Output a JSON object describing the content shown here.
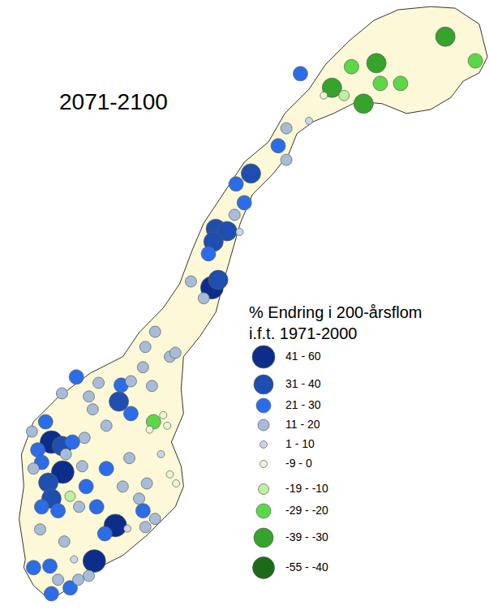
{
  "chart_data": {
    "type": "scatter",
    "title": "2071-2100",
    "legend_title": [
      "% Endring i 200-årsflom",
      "i.f.t. 1971-2000"
    ],
    "tick_labels": false,
    "grid": false,
    "xlim": [
      -140,
      1115
    ],
    "ylim": [
      6375,
      7950
    ],
    "classes": [
      {
        "label": "41 - 60",
        "min": 41,
        "max": 60,
        "color": "#0d2d8a"
      },
      {
        "label": "31 - 40",
        "min": 31,
        "max": 40,
        "color": "#1e4fb0"
      },
      {
        "label": "21 - 30",
        "min": 21,
        "max": 30,
        "color": "#2b6de8"
      },
      {
        "label": "11 - 20",
        "min": 11,
        "max": 20,
        "color": "#a7bcd8"
      },
      {
        "label": "1 - 10",
        "min": 1,
        "max": 10,
        "color": "#c8d6ea"
      },
      {
        "label": "-9 - 0",
        "min": -9,
        "max": 0,
        "color": "#e8f7d5"
      },
      {
        "label": "-19 - -10",
        "min": -19,
        "max": -10,
        "color": "#bdf0a0"
      },
      {
        "label": "-29 - -20",
        "min": -29,
        "max": -20,
        "color": "#5bd848"
      },
      {
        "label": "-39 - -30",
        "min": -39,
        "max": -30,
        "color": "#36a32b"
      },
      {
        "label": "-55 - -40",
        "min": -55,
        "max": -40,
        "color": "#1b6b1b"
      }
    ],
    "outline": {
      "x": [
        -75,
        -91,
        -79,
        -85,
        -54,
        9,
        92,
        175,
        217,
        279,
        321,
        352,
        383,
        445,
        487,
        549,
        591,
        653,
        695,
        757,
        820,
        882,
        965,
        1028,
        1090,
        1111,
        1090,
        1049,
        1017,
        965,
        903,
        841,
        778,
        716,
        664,
        622,
        601,
        560,
        508,
        477,
        456,
        435,
        414,
        373,
        331,
        325,
        331,
        300,
        325,
        331,
        310,
        279,
        237,
        175,
        92,
        29,
        -12,
        -54,
        -79
      ],
      "y": [
        6515,
        6619,
        6702,
        6785,
        6868,
        6931,
        6993,
        7035,
        7097,
        7160,
        7222,
        7305,
        7378,
        7472,
        7534,
        7586,
        7659,
        7721,
        7784,
        7846,
        7898,
        7925,
        7933,
        7929,
        7888,
        7804,
        7763,
        7742,
        7700,
        7669,
        7659,
        7684,
        7690,
        7659,
        7638,
        7607,
        7555,
        7503,
        7451,
        7378,
        7305,
        7232,
        7149,
        7087,
        7035,
        6952,
        6889,
        6816,
        6754,
        6702,
        6650,
        6619,
        6577,
        6525,
        6484,
        6436,
        6411,
        6448,
        6494
      ]
    },
    "stations": {
      "x": [
        1003,
        1080,
        826,
        762,
        712,
        836,
        888,
        793,
        743,
        691,
        631,
        653,
        595,
        574,
        595,
        504,
        466,
        487,
        462,
        414,
        443,
        475,
        408,
        395,
        404,
        420,
        350,
        383,
        258,
        296,
        310,
        233,
        227,
        250,
        196,
        56,
        113,
        171,
        88,
        165,
        19,
        98,
        254,
        279,
        289,
        244,
        196,
        133,
        -58,
        -23,
        -8,
        19,
        46,
        -43,
        -33,
        21,
        77,
        -16,
        29,
        -54,
        71,
        133,
        192,
        81,
        175,
        237,
        217,
        273,
        296,
        312,
        40,
        -8,
        -33,
        9,
        63,
        108,
        156,
        129,
        187,
        227,
        233,
        258,
        -37,
        25,
        102,
        50,
        88,
        -54,
        -12,
        9,
        -8,
        40,
        61
      ],
      "y": [
        7856,
        7794,
        7788,
        7779,
        7725,
        7736,
        7736,
        7684,
        7705,
        7705,
        7761,
        7640,
        7621,
        7576,
        7540,
        7505,
        7478,
        7430,
        7399,
        7363,
        7357,
        7355,
        7330,
        7299,
        7212,
        7232,
        7228,
        7185,
        7099,
        7035,
        7045,
        7060,
        7008,
        6960,
        6972,
        6983,
        6968,
        6962,
        6933,
        6920,
        6941,
        6900,
        6868,
        6885,
        6858,
        6848,
        6889,
        6858,
        6843,
        6868,
        6816,
        6806,
        6816,
        6796,
        6764,
        6739,
        6827,
        6712,
        6785,
        6748,
        6754,
        6748,
        6775,
        6702,
        6702,
        6710,
        6671,
        6785,
        6733,
        6710,
        6677,
        6671,
        6650,
        6640,
        6650,
        6650,
        6602,
        6581,
        6594,
        6640,
        6598,
        6619,
        6592,
        6561,
        6511,
        6515,
        6473,
        6494,
        6498,
        6463,
        6427,
        6442,
        6463
      ],
      "values": [
        -35,
        -25,
        -35,
        -25,
        -35,
        -25,
        -25,
        -35,
        -15,
        -5,
        25,
        5,
        15,
        25,
        15,
        35,
        25,
        25,
        15,
        35,
        35,
        5,
        35,
        25,
        50,
        35,
        15,
        15,
        15,
        15,
        15,
        15,
        15,
        15,
        15,
        25,
        15,
        25,
        15,
        35,
        15,
        15,
        -25,
        -5,
        -5,
        -5,
        25,
        15,
        15,
        25,
        50,
        35,
        25,
        25,
        25,
        50,
        15,
        35,
        15,
        15,
        15,
        25,
        15,
        25,
        15,
        15,
        15,
        5,
        -5,
        -5,
        -15,
        35,
        25,
        25,
        15,
        25,
        50,
        25,
        5,
        25,
        15,
        15,
        15,
        15,
        50,
        5,
        15,
        25,
        25,
        15,
        25,
        25,
        15
      ]
    }
  }
}
